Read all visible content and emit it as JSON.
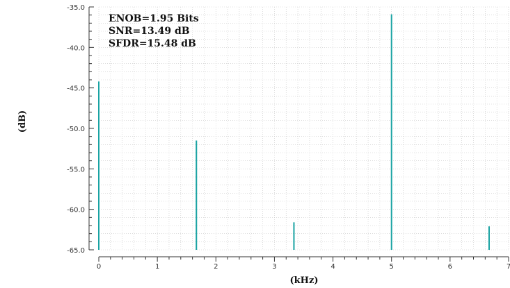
{
  "chart_data": {
    "type": "bar",
    "title": "",
    "xlabel": "(kHz)",
    "ylabel": "(dB)",
    "xlim": [
      0,
      7
    ],
    "ylim": [
      -65,
      -35
    ],
    "x_ticks": [
      0,
      1,
      2,
      3,
      4,
      5,
      6,
      7
    ],
    "x_tick_labels": [
      "0",
      "1",
      "2",
      "3",
      "4",
      "5",
      "6",
      "7"
    ],
    "y_ticks": [
      -35,
      -40,
      -45,
      -50,
      -55,
      -60,
      -65
    ],
    "y_tick_labels": [
      "-35.0",
      "-40.0",
      "-45.0",
      "-50.0",
      "-55.0",
      "-60.0",
      "-65.0"
    ],
    "grid": true,
    "series": [
      {
        "x": [
          0,
          1.667,
          3.333,
          5.0,
          6.667
        ],
        "values": [
          -44.2,
          -51.5,
          -61.6,
          -35.9,
          -62.1
        ]
      }
    ],
    "annotations": [
      "ENOB=1.95 Bits",
      "SNR=13.49 dB",
      "SFDR=15.48 dB"
    ],
    "colors": {
      "series": "#1aa3a3",
      "grid": "#c8c8c8",
      "axis": "#333333"
    }
  }
}
